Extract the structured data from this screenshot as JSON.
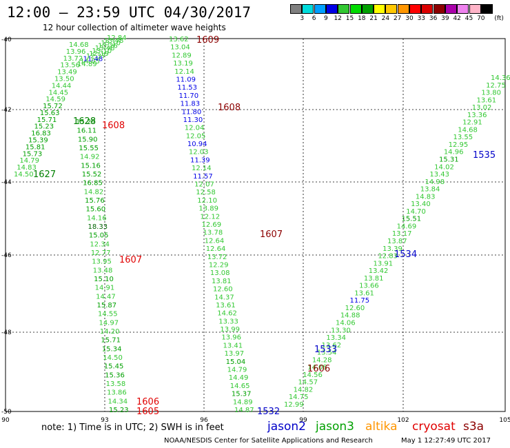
{
  "header": {
    "title": "12:00 – 23:59 UTC 04/30/2017",
    "subtitle": "12 hour collection of altimeter wave heights"
  },
  "colorbar": {
    "labels": [
      "3",
      "6",
      "9",
      "12",
      "15",
      "18",
      "21",
      "24",
      "27",
      "30",
      "33",
      "36",
      "39",
      "42",
      "45",
      "70"
    ],
    "unit": "(ft)",
    "colors": [
      "#808080",
      "#00dcdc",
      "#00a0ff",
      "#0000e6",
      "#32c832",
      "#00dc00",
      "#00a000",
      "#ffff00",
      "#ffc800",
      "#ff9600",
      "#ff0000",
      "#dc0000",
      "#8c0000",
      "#aa00aa",
      "#ee82ee",
      "#ffb4c8",
      "#000000"
    ]
  },
  "map": {
    "lat_labels": [
      "-40",
      "-42",
      "-44",
      "-46",
      "-48",
      "-50"
    ],
    "lon_labels": [
      "90",
      "93",
      "96",
      "99",
      "102",
      "105"
    ]
  },
  "tracks": [
    {
      "id": "1627",
      "label_color": "#00a000",
      "label": "1627",
      "readings": [
        "14.50",
        "14.83",
        "14.79",
        "15.73",
        "15.81",
        "15.39",
        "16.83",
        "15.23",
        "15.71",
        "15.63",
        "15.72",
        "14.59",
        "14.45",
        "14.44",
        "13.50",
        "13.49",
        "13.56",
        "13.72",
        "13.96",
        "14.68",
        "14.89",
        "14.05",
        "11.48",
        "12.37",
        "12.19",
        "13.10",
        "13.48",
        "13.26",
        "13.10",
        "13.48",
        "12.84"
      ]
    },
    {
      "id": "1608a",
      "label_color": "#c80000",
      "label": "1608",
      "readings": [
        "15.29",
        "16.11",
        "15.90",
        "15.55",
        "14.92",
        "15.16",
        "15.52",
        "16.85",
        "14.82",
        "15.76",
        "15.60",
        "14.16",
        "18.33",
        "15.05",
        "12.34",
        "12.77",
        "13.95",
        "13.48",
        "15.10",
        "14.91",
        "14.47",
        "15.87",
        "14.55",
        "14.97",
        "14.20",
        "15.71",
        "15.34",
        "14.50",
        "15.45",
        "15.36",
        "13.58",
        "13.86",
        "14.34",
        "15.23"
      ]
    },
    {
      "id": "1609",
      "label_color": "#8c0000",
      "label": "1609",
      "readings": [
        "13.62",
        "13.04",
        "12.89",
        "13.19",
        "12.14",
        "11.09",
        "11.53",
        "11.70",
        "11.83",
        "11.80",
        "11.30",
        "12.04",
        "12.05",
        "10.94",
        "12.03",
        "11.39",
        "12.14",
        "11.57",
        "12.07",
        "12.58",
        "12.10",
        "13.89",
        "12.12",
        "12.69",
        "13.78",
        "12.64",
        "12.64",
        "13.72",
        "12.29",
        "13.08",
        "13.81",
        "12.60",
        "14.37",
        "13.61",
        "14.62",
        "13.33",
        "13.99",
        "13.96",
        "13.41",
        "13.97",
        "15.04",
        "14.79",
        "14.49",
        "14.65",
        "15.37",
        "14.89",
        "14.87"
      ]
    },
    {
      "id": "1535",
      "label_color": "#0000c8",
      "label": "1535",
      "readings": [
        "14.36",
        "12.75",
        "13.80",
        "13.61",
        "13.02",
        "13.36",
        "12.91",
        "14.68",
        "13.55",
        "12.95",
        "14.96",
        "15.31",
        "14.02",
        "13.43",
        "14.98",
        "13.84",
        "14.83",
        "13.40",
        "14.70",
        "15.51",
        "14.69",
        "13.17",
        "13.87",
        "13.39",
        "12.83",
        "13.91",
        "13.42",
        "13.81",
        "13.66",
        "13.61",
        "11.75",
        "12.60",
        "14.88",
        "14.06",
        "13.30",
        "13.34",
        "13.62",
        "13.54",
        "14.28",
        "14.08",
        "14.56",
        "14.57",
        "14.82",
        "14.75",
        "12.99"
      ]
    }
  ],
  "track_labels": [
    {
      "text": "1609",
      "color": "#8c0000"
    },
    {
      "text": "1608",
      "color": "#8c0000"
    },
    {
      "text": "1608",
      "color": "#e00000"
    },
    {
      "text": "1627",
      "color": "#008000"
    },
    {
      "text": "1628",
      "color": "#008000"
    },
    {
      "text": "1607",
      "color": "#8c0000"
    },
    {
      "text": "1607",
      "color": "#e00000"
    },
    {
      "text": "1606",
      "color": "#e00000"
    },
    {
      "text": "1605",
      "color": "#e00000"
    },
    {
      "text": "1606",
      "color": "#8c0000"
    },
    {
      "text": "1535",
      "color": "#0000c8"
    },
    {
      "text": "1534",
      "color": "#0000c8"
    },
    {
      "text": "1533",
      "color": "#0000c8"
    },
    {
      "text": "1532",
      "color": "#0000c8"
    }
  ],
  "footer": {
    "note": "note: 1) Time is in UTC; 2) SWH is in feet",
    "satellites": [
      {
        "name": "jason2",
        "color": "#0000c8"
      },
      {
        "name": "jason3",
        "color": "#00a000"
      },
      {
        "name": "altika",
        "color": "#ff9600"
      },
      {
        "name": "cryosat",
        "color": "#e00000"
      },
      {
        "name": "s3a",
        "color": "#8c0000"
      }
    ],
    "credit": "NOAA/NESDIS Center for Satellite Applications and Research",
    "timestamp": "May  1 12:27:49 UTC 2017"
  }
}
